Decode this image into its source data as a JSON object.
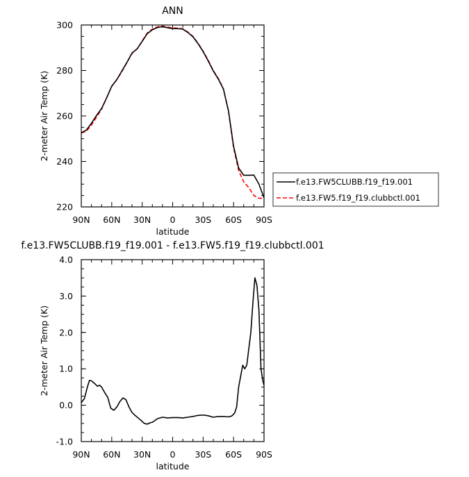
{
  "chart_data": [
    {
      "type": "line",
      "title": "ANN",
      "xlabel": "latitude",
      "ylabel": "2-meter Air Temp (K)",
      "xlim": [
        -90,
        90
      ],
      "ylim": [
        220,
        300
      ],
      "xticks": [
        {
          "v": -90,
          "label": "90N"
        },
        {
          "v": -60,
          "label": "60N"
        },
        {
          "v": -30,
          "label": "30N"
        },
        {
          "v": 0,
          "label": "0"
        },
        {
          "v": 30,
          "label": "30S"
        },
        {
          "v": 60,
          "label": "60S"
        },
        {
          "v": 90,
          "label": "90S"
        }
      ],
      "yticks": [
        {
          "v": 220,
          "label": "220"
        },
        {
          "v": 240,
          "label": "240"
        },
        {
          "v": 260,
          "label": "260"
        },
        {
          "v": 280,
          "label": "280"
        },
        {
          "v": 300,
          "label": "300"
        }
      ],
      "legend_position": "right",
      "series": [
        {
          "name": "f.e13.FW5.f19_f19.clubbctl.001",
          "color": "#ff0000",
          "dash": "dashed",
          "x": [
            -90,
            -85,
            -80,
            -75,
            -70,
            -65,
            -60,
            -55,
            -50,
            -45,
            -40,
            -35,
            -30,
            -25,
            -20,
            -15,
            -10,
            -5,
            0,
            5,
            10,
            15,
            20,
            25,
            30,
            35,
            40,
            45,
            50,
            55,
            60,
            65,
            70,
            75,
            80,
            85,
            90
          ],
          "y": [
            252.5,
            253.3,
            256.0,
            259.5,
            263.0,
            268.0,
            273.0,
            276.0,
            279.5,
            283.5,
            287.5,
            289.5,
            293.0,
            296.5,
            298.2,
            299.2,
            299.5,
            299.1,
            298.7,
            298.6,
            298.3,
            296.9,
            295.0,
            292.0,
            288.5,
            284.5,
            280.0,
            276.5,
            272.0,
            262.0,
            246.0,
            236.0,
            231.0,
            228.5,
            225.0,
            223.8,
            223.8
          ]
        },
        {
          "name": "f.e13.FW5CLUBB.f19_f19.001",
          "color": "#000000",
          "dash": "solid",
          "x": [
            -90,
            -85,
            -80,
            -75,
            -70,
            -65,
            -60,
            -55,
            -50,
            -45,
            -40,
            -35,
            -30,
            -25,
            -20,
            -15,
            -10,
            -5,
            0,
            5,
            10,
            15,
            20,
            25,
            30,
            35,
            40,
            45,
            50,
            55,
            60,
            65,
            70,
            75,
            80,
            85,
            90
          ],
          "y": [
            252.6,
            253.8,
            256.8,
            260.2,
            263.3,
            268.0,
            273.1,
            276.0,
            279.8,
            283.6,
            287.7,
            289.5,
            292.8,
            296.2,
            297.9,
            298.9,
            299.3,
            298.8,
            298.4,
            298.4,
            298.2,
            296.7,
            294.8,
            291.8,
            288.3,
            284.2,
            279.8,
            276.2,
            271.8,
            262.2,
            246.7,
            237.1,
            233.9,
            233.9,
            234.0,
            230.0,
            224.0
          ]
        }
      ]
    },
    {
      "type": "line",
      "title": "f.e13.FW5CLUBB.f19_f19.001 - f.e13.FW5.f19_f19.clubbctl.001",
      "xlabel": "latitude",
      "ylabel": "2-meter Air Temp (K)",
      "xlim": [
        -90,
        90
      ],
      "ylim": [
        -1.0,
        4.0
      ],
      "xticks": [
        {
          "v": -90,
          "label": "90N"
        },
        {
          "v": -60,
          "label": "60N"
        },
        {
          "v": -30,
          "label": "30N"
        },
        {
          "v": 0,
          "label": "0"
        },
        {
          "v": 30,
          "label": "30S"
        },
        {
          "v": 60,
          "label": "60S"
        },
        {
          "v": 90,
          "label": "90S"
        }
      ],
      "yticks": [
        {
          "v": -1.0,
          "label": "-1.0"
        },
        {
          "v": 0.0,
          "label": "0.0"
        },
        {
          "v": 1.0,
          "label": "1.0"
        },
        {
          "v": 2.0,
          "label": "2.0"
        },
        {
          "v": 3.0,
          "label": "3.0"
        },
        {
          "v": 4.0,
          "label": "4.0"
        }
      ],
      "series": [
        {
          "name": "",
          "color": "#000000",
          "dash": "solid",
          "x": [
            -90,
            -87,
            -84,
            -82,
            -80,
            -77,
            -74,
            -72,
            -70,
            -67,
            -64,
            -61,
            -58,
            -55,
            -52,
            -49,
            -46,
            -43,
            -40,
            -37,
            -34,
            -31,
            -28,
            -25,
            -22,
            -20,
            -15,
            -10,
            -5,
            0,
            5,
            10,
            15,
            20,
            25,
            30,
            35,
            40,
            45,
            50,
            55,
            58,
            61,
            63,
            65,
            67,
            69,
            71,
            73,
            75,
            77,
            79,
            81,
            83,
            85,
            87,
            89,
            90
          ],
          "y": [
            0.07,
            0.18,
            0.5,
            0.68,
            0.67,
            0.6,
            0.52,
            0.55,
            0.5,
            0.35,
            0.22,
            -0.08,
            -0.14,
            -0.05,
            0.1,
            0.2,
            0.15,
            -0.05,
            -0.2,
            -0.28,
            -0.35,
            -0.42,
            -0.5,
            -0.52,
            -0.48,
            -0.47,
            -0.37,
            -0.33,
            -0.35,
            -0.34,
            -0.34,
            -0.35,
            -0.33,
            -0.31,
            -0.28,
            -0.27,
            -0.29,
            -0.33,
            -0.31,
            -0.31,
            -0.32,
            -0.3,
            -0.22,
            -0.05,
            0.5,
            0.8,
            1.1,
            1.0,
            1.1,
            1.55,
            2.0,
            2.8,
            3.5,
            3.3,
            2.6,
            1.0,
            0.65,
            0.55
          ]
        }
      ]
    }
  ]
}
